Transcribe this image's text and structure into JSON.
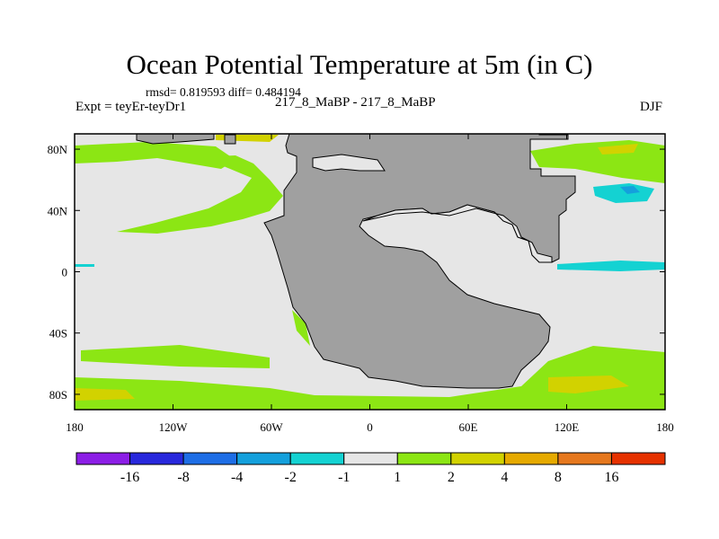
{
  "title": "Ocean Potential Temperature at 5m (in C)",
  "stats": "rmsd= 0.819593 diff= 0.484194",
  "expt": "Expt = teyEr-teyDr1",
  "period": "217_8_MaBP - 217_8_MaBP",
  "season": "DJF",
  "map": {
    "lon_range": [
      -180,
      180
    ],
    "lat_range": [
      -90,
      90
    ],
    "land_color": "#a0a0a0",
    "x_ticks": [
      {
        "value": -180,
        "label": "180"
      },
      {
        "value": -120,
        "label": "120W"
      },
      {
        "value": -60,
        "label": "60W"
      },
      {
        "value": 0,
        "label": "0"
      },
      {
        "value": 60,
        "label": "60E"
      },
      {
        "value": 120,
        "label": "120E"
      },
      {
        "value": 180,
        "label": "180"
      }
    ],
    "y_ticks": [
      {
        "value": 80,
        "label": "80N"
      },
      {
        "value": 40,
        "label": "40N"
      },
      {
        "value": 0,
        "label": "0"
      },
      {
        "value": -40,
        "label": "40S"
      },
      {
        "value": -80,
        "label": "80S"
      }
    ]
  },
  "colorbar": {
    "colors": [
      "#8c1ee6",
      "#2828dc",
      "#1e6ee6",
      "#14a0dc",
      "#14d2d2",
      "#e6e6e6",
      "#8ce614",
      "#d2d200",
      "#e6aa00",
      "#e6781e",
      "#e63200"
    ],
    "labels": [
      "-16",
      "-8",
      "-4",
      "-2",
      "-1",
      "1",
      "2",
      "4",
      "8",
      "16"
    ]
  }
}
